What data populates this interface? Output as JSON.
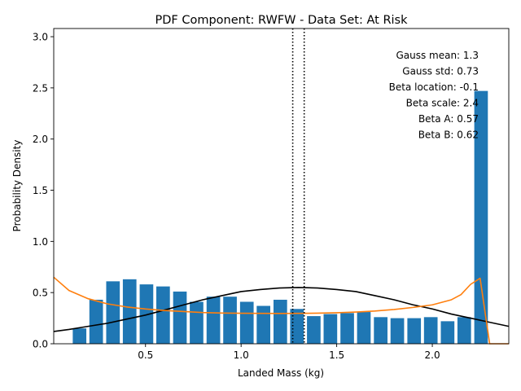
{
  "chart_data": {
    "type": "bar",
    "title": "PDF Component: RWFW - Data Set: At Risk",
    "xlabel": "Landed Mass (kg)",
    "ylabel": "Probability Density",
    "xlim": [
      0.02,
      2.4
    ],
    "ylim": [
      0.0,
      3.08
    ],
    "grid": false,
    "xticks": [
      0.5,
      1.0,
      1.5,
      2.0
    ],
    "xtick_labels": [
      "0.5",
      "1.0",
      "1.5",
      "2.0"
    ],
    "yticks": [
      0.0,
      0.5,
      1.0,
      1.5,
      2.0,
      2.5,
      3.0
    ],
    "ytick_labels": [
      "0.0",
      "0.5",
      "1.0",
      "1.5",
      "2.0",
      "2.5",
      "3.0"
    ],
    "histogram": {
      "color": "#1f77b4",
      "bar_width": 0.071,
      "centers": [
        0.155,
        0.242,
        0.33,
        0.417,
        0.505,
        0.592,
        0.68,
        0.767,
        0.855,
        0.942,
        1.03,
        1.117,
        1.205,
        1.292,
        1.38,
        1.467,
        1.555,
        1.642,
        1.73,
        1.817,
        1.905,
        1.992,
        2.08,
        2.167,
        2.255
      ],
      "values": [
        0.15,
        0.43,
        0.61,
        0.63,
        0.58,
        0.56,
        0.51,
        0.41,
        0.46,
        0.46,
        0.41,
        0.37,
        0.43,
        0.34,
        0.27,
        0.29,
        0.3,
        0.31,
        0.26,
        0.25,
        0.25,
        0.26,
        0.22,
        0.26,
        2.47
      ]
    },
    "series": [
      {
        "kind": "gauss-curve",
        "color": "#000000",
        "x": [
          0.02,
          0.1,
          0.2,
          0.3,
          0.4,
          0.5,
          0.6,
          0.7,
          0.8,
          0.9,
          1.0,
          1.1,
          1.2,
          1.3,
          1.4,
          1.5,
          1.6,
          1.7,
          1.8,
          1.9,
          2.0,
          2.1,
          2.2,
          2.3,
          2.4
        ],
        "y": [
          0.12,
          0.14,
          0.17,
          0.2,
          0.24,
          0.28,
          0.33,
          0.38,
          0.43,
          0.47,
          0.51,
          0.53,
          0.545,
          0.55,
          0.545,
          0.53,
          0.51,
          0.47,
          0.43,
          0.38,
          0.34,
          0.29,
          0.25,
          0.21,
          0.17
        ]
      },
      {
        "kind": "beta-curve",
        "color": "#ff7f0e",
        "x": [
          0.02,
          0.1,
          0.2,
          0.3,
          0.4,
          0.5,
          0.6,
          0.7,
          0.8,
          0.9,
          1.0,
          1.1,
          1.2,
          1.3,
          1.4,
          1.5,
          1.6,
          1.7,
          1.8,
          1.9,
          2.0,
          2.1,
          2.15,
          2.2,
          2.25,
          2.3,
          2.4
        ],
        "y": [
          0.65,
          0.52,
          0.44,
          0.39,
          0.36,
          0.34,
          0.325,
          0.315,
          0.305,
          0.3,
          0.298,
          0.297,
          0.296,
          0.297,
          0.299,
          0.303,
          0.31,
          0.32,
          0.335,
          0.355,
          0.38,
          0.43,
          0.48,
          0.58,
          0.64,
          0.0,
          0.0
        ]
      }
    ],
    "vlines": {
      "style": "dotted",
      "color": "#000000",
      "x": [
        1.27,
        1.33
      ]
    },
    "annotations": [
      "Gauss mean: 1.3",
      "Gauss std: 0.73",
      "Beta location: -0.1",
      "Beta scale: 2.4",
      "Beta A: 0.57",
      "Beta B: 0.62"
    ]
  }
}
